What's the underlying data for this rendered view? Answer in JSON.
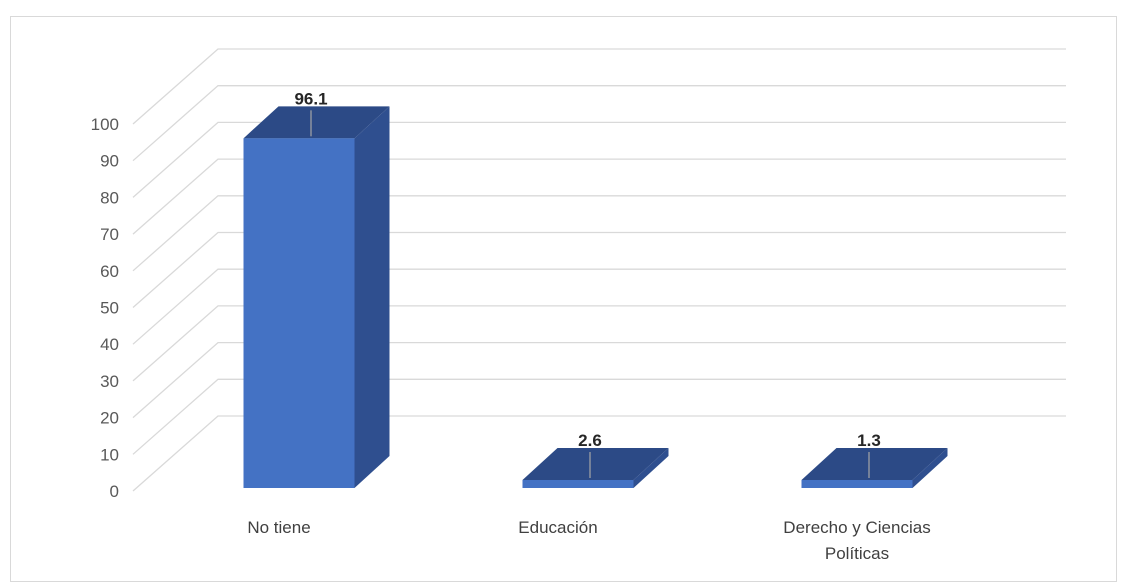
{
  "chart_data": {
    "type": "bar",
    "categories": [
      "No tiene",
      "Educación",
      "Derecho y Ciencias Políticas"
    ],
    "category_lines": [
      [
        "No tiene"
      ],
      [
        "Educación"
      ],
      [
        "Derecho y Ciencias",
        "Políticas"
      ]
    ],
    "values": [
      96.1,
      2.6,
      1.3
    ],
    "data_labels": [
      "96.1",
      "2.6",
      "1.3"
    ],
    "ylim": [
      0,
      100
    ],
    "yticks": [
      0,
      10,
      20,
      30,
      40,
      50,
      60,
      70,
      80,
      90,
      100
    ],
    "title": "",
    "xlabel": "",
    "ylabel": "",
    "grid": true,
    "legend": "none",
    "style": "3d-column",
    "colors": {
      "bar_front": "#4472c4",
      "bar_side": "#2f4f8f",
      "bar_top": "#2c4a86",
      "grid": "#d9d9d9",
      "leader": "#a6a6a6"
    }
  }
}
